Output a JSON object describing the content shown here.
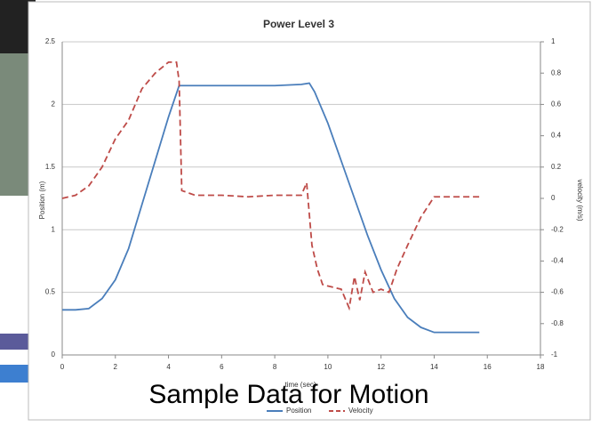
{
  "chart_data": {
    "type": "line",
    "title": "Power Level 3",
    "x_label": "time (sec)",
    "y_label": "Position (m)",
    "y2_label": "velocity (m/s)",
    "xlim": [
      0,
      18
    ],
    "xticks": [
      0,
      2,
      4,
      6,
      8,
      10,
      12,
      14,
      16,
      18
    ],
    "ylim": [
      0,
      2.5
    ],
    "yticks": [
      0,
      0.5,
      1,
      1.5,
      2,
      2.5
    ],
    "y2lim": [
      -1,
      1
    ],
    "y2ticks": [
      -1,
      -0.8,
      -0.6,
      -0.4,
      -0.2,
      0,
      0.2,
      0.4,
      0.6,
      0.8,
      1
    ],
    "grid": true,
    "legend": "bottom",
    "series": [
      {
        "name": "Position",
        "color": "#4a7ebb",
        "x": [
          0,
          0.5,
          1,
          1.5,
          2,
          2.5,
          3,
          3.5,
          4,
          4.4,
          5,
          6,
          7,
          8,
          9,
          9.3,
          9.5,
          10,
          10.5,
          11,
          11.5,
          12,
          12.5,
          13,
          13.5,
          14,
          14.5,
          15,
          15.7
        ],
        "values": [
          0.36,
          0.36,
          0.37,
          0.45,
          0.6,
          0.85,
          1.2,
          1.55,
          1.9,
          2.15,
          2.15,
          2.15,
          2.15,
          2.15,
          2.16,
          2.17,
          2.1,
          1.85,
          1.55,
          1.25,
          0.95,
          0.68,
          0.45,
          0.3,
          0.22,
          0.18,
          0.18,
          0.18,
          0.18
        ]
      },
      {
        "name": "Velocity",
        "color": "#be4b48",
        "axis": "y2",
        "x": [
          0,
          0.5,
          1,
          1.5,
          2,
          2.5,
          3,
          3.5,
          4,
          4.3,
          4.4,
          4.5,
          5,
          6,
          7,
          8,
          9,
          9.2,
          9.4,
          9.6,
          9.8,
          10,
          10.5,
          10.8,
          11,
          11.2,
          11.4,
          11.7,
          12,
          12.3,
          12.6,
          13,
          13.5,
          14,
          15,
          15.7
        ],
        "values": [
          0,
          0.02,
          0.08,
          0.2,
          0.38,
          0.5,
          0.7,
          0.8,
          0.87,
          0.87,
          0.75,
          0.05,
          0.02,
          0.02,
          0.01,
          0.02,
          0.02,
          0.1,
          -0.3,
          -0.45,
          -0.55,
          -0.56,
          -0.58,
          -0.7,
          -0.5,
          -0.65,
          -0.47,
          -0.6,
          -0.58,
          -0.6,
          -0.45,
          -0.3,
          -0.12,
          0.01,
          0.01,
          0.01
        ]
      }
    ]
  },
  "caption": "Sample Data for Motion"
}
